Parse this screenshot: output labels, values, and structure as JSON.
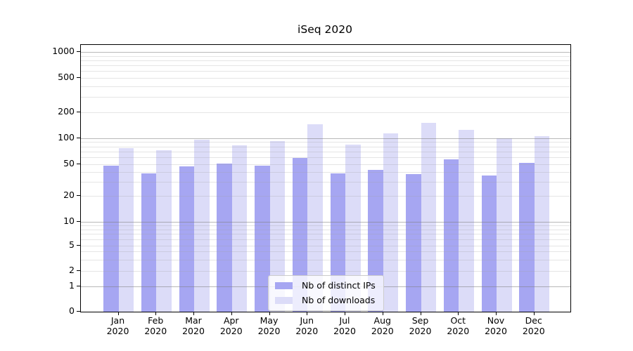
{
  "chart_data": {
    "type": "bar",
    "title": "iSeq 2020",
    "months": [
      "Jan",
      "Feb",
      "Mar",
      "Apr",
      "May",
      "Jun",
      "Jul",
      "Aug",
      "Sep",
      "Oct",
      "Nov",
      "Dec"
    ],
    "x_tick_year": "2020",
    "series": [
      {
        "name": "Nb of distinct IPs",
        "color": "#a6a6f2",
        "values": [
          48,
          39,
          47,
          51,
          48,
          59,
          39,
          43,
          38,
          57,
          36,
          52
        ]
      },
      {
        "name": "Nb of downloads",
        "color": "#dcdcf8",
        "values": [
          76,
          72,
          96,
          82,
          92,
          143,
          84,
          112,
          151,
          124,
          99,
          105
        ]
      }
    ],
    "yscale": "symlog",
    "ytick_labels": [
      "0",
      "1",
      "2",
      "5",
      "10",
      "20",
      "50",
      "100",
      "200",
      "500",
      "1000"
    ],
    "major_gridline_values": [
      1,
      10,
      100,
      1000
    ],
    "minor_gridline_values": [
      2,
      3,
      4,
      5,
      6,
      7,
      8,
      9,
      20,
      30,
      40,
      50,
      60,
      70,
      80,
      90,
      200,
      300,
      400,
      500,
      600,
      700,
      800,
      900
    ],
    "ylim": [
      0,
      1200
    ],
    "grid": "both",
    "legend_position": "lower center"
  }
}
